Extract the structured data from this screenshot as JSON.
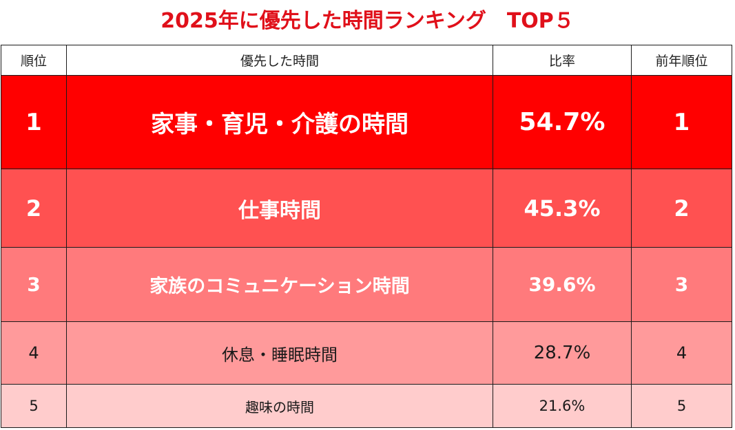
{
  "title": "2025年に優先した時間ランキング　TOP５",
  "table": {
    "headers": [
      "順位",
      "優先した時間",
      "比率",
      "前年順位"
    ],
    "rows": [
      {
        "rank": "1",
        "item": "家事・育児・介護の時間",
        "ratio": "54.7%",
        "prev_rank": "1",
        "bg": "#ff0000"
      },
      {
        "rank": "2",
        "item": "仕事時間",
        "ratio": "45.3%",
        "prev_rank": "2",
        "bg": "#ff5151"
      },
      {
        "rank": "3",
        "item": "家族のコミュニケーション時間",
        "ratio": "39.6%",
        "prev_rank": "3",
        "bg": "#ff7a7c"
      },
      {
        "rank": "4",
        "item": "休息・睡眠時間",
        "ratio": "28.7%",
        "prev_rank": "4",
        "bg": "#ff9a9b"
      },
      {
        "rank": "5",
        "item": "趣味の時間",
        "ratio": "21.6%",
        "prev_rank": "5",
        "bg": "#ffcccc"
      }
    ]
  },
  "colors": {
    "title": "#e0101a",
    "border": "#1a1a1a"
  },
  "chart_data": {
    "type": "table",
    "title": "2025年に優先した時間ランキング　TOP５",
    "columns": [
      "順位",
      "優先した時間",
      "比率",
      "前年順位"
    ],
    "rows": [
      [
        1,
        "家事・育児・介護の時間",
        54.7,
        1
      ],
      [
        2,
        "仕事時間",
        45.3,
        2
      ],
      [
        3,
        "家族のコミュニケーション時間",
        39.6,
        3
      ],
      [
        4,
        "休息・睡眠時間",
        28.7,
        4
      ],
      [
        5,
        "趣味の時間",
        21.6,
        5
      ]
    ],
    "unit": "%"
  }
}
